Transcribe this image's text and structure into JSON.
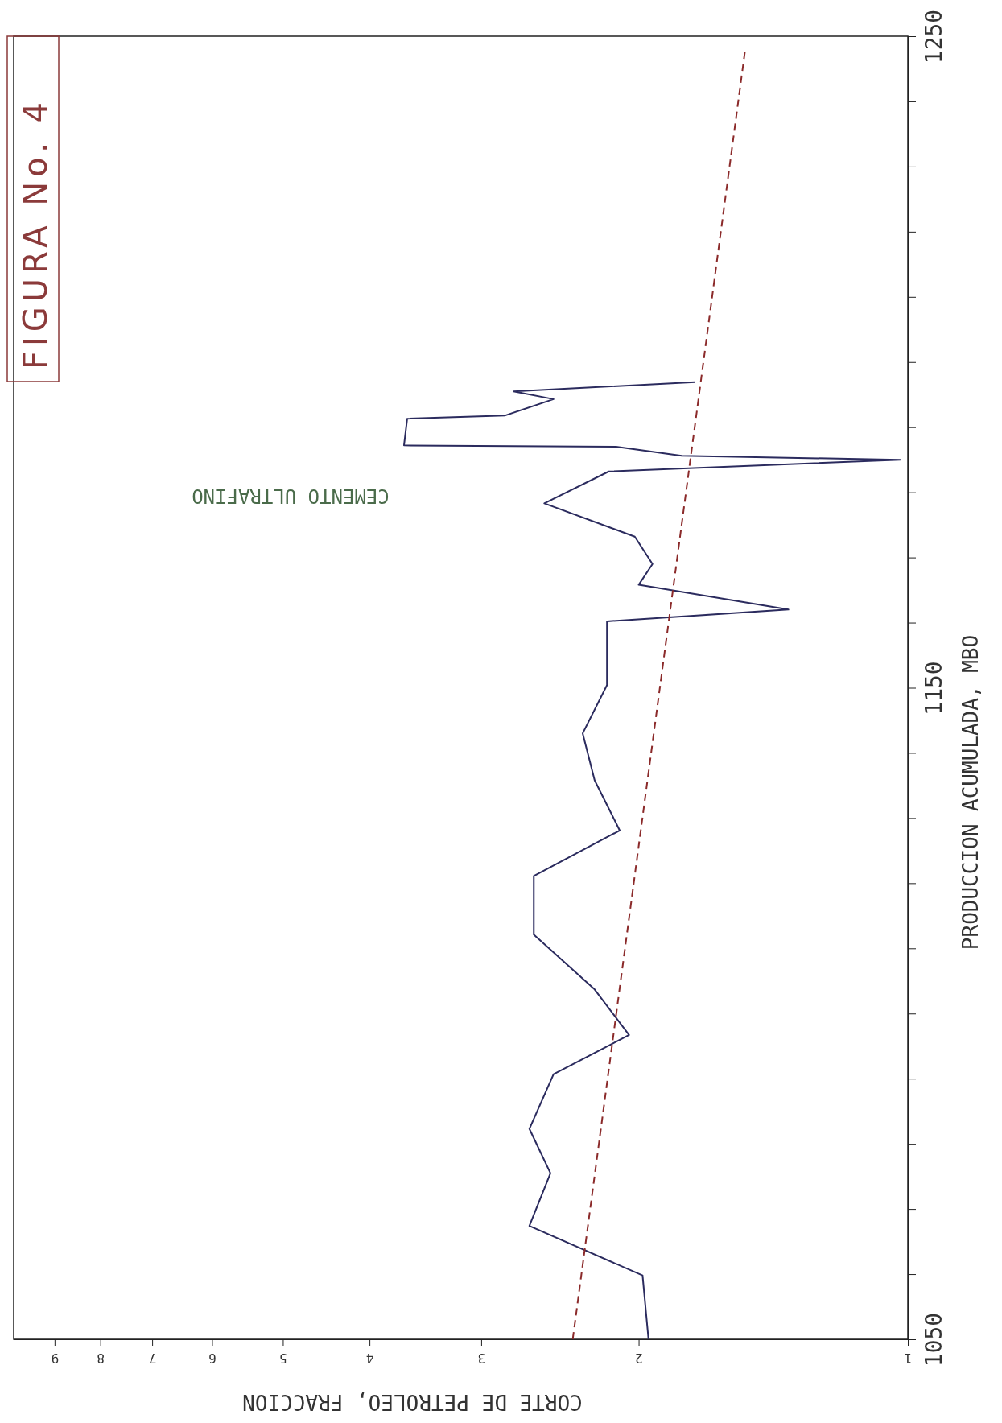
{
  "chart_data": {
    "type": "line",
    "title": "FIGURA No. 4",
    "xlabel": "CORTE DE PETROLEO, FRACCION",
    "ylabel": "PRODUCCION ACUMULADA, MBO",
    "annotations": [
      "CEMENTO ULTRAFINO"
    ],
    "log": "x",
    "xlim": [
      10,
      1
    ],
    "ylim": [
      1050,
      1250
    ],
    "xticks": [
      1,
      2,
      3,
      4,
      5,
      6,
      7,
      8,
      9
    ],
    "yticks": [
      1050,
      {
        "value": 1060,
        "label": null
      },
      {
        "value": 1070,
        "label": null
      },
      {
        "value": 1080,
        "label": null
      },
      {
        "value": 1090,
        "label": null
      },
      {
        "value": 1100,
        "label": null
      },
      {
        "value": 1110,
        "label": null
      },
      {
        "value": 1120,
        "label": null
      },
      {
        "value": 1130,
        "label": null
      },
      {
        "value": 1140,
        "label": null
      },
      1150,
      {
        "value": 1160,
        "label": null
      },
      {
        "value": 1170,
        "label": null
      },
      {
        "value": 1180,
        "label": null
      },
      {
        "value": 1190,
        "label": null
      },
      {
        "value": 1200,
        "label": null
      },
      {
        "value": 1210,
        "label": null
      },
      {
        "value": 1220,
        "label": null
      },
      {
        "value": 1230,
        "label": null
      },
      {
        "value": 1240,
        "label": null
      },
      1250
    ],
    "series": [
      {
        "color": "#2b2b5e",
        "line_style": "solid",
        "x": [
          1.95,
          1.98,
          2.65,
          2.51,
          2.65,
          2.49,
          2.05,
          2.24,
          2.62,
          2.62,
          2.1,
          2.24,
          2.31,
          2.17,
          2.17,
          1.36,
          2.0,
          1.93,
          2.02,
          2.55,
          2.16,
          1.02,
          1.79,
          2.12,
          3.66,
          3.63,
          2.82,
          2.49,
          2.76,
          1.73
        ],
        "values": [
          1050,
          1059.8,
          1067.4,
          1075.5,
          1082.3,
          1090.7,
          1096.7,
          1103.7,
          1112.1,
          1121.1,
          1128.1,
          1135.8,
          1143,
          1150.4,
          1160.2,
          1162,
          1165.8,
          1169,
          1173.2,
          1178.3,
          1183.2,
          1185,
          1185.6,
          1187,
          1187.2,
          1191.3,
          1191.8,
          1194.3,
          1195.5,
          1196.9
        ]
      },
      {
        "type": "line",
        "color": "#8b2a2a",
        "line_style": "dashed",
        "x": [
          2.37,
          1.52
        ],
        "values": [
          1050,
          1248
        ]
      }
    ]
  }
}
